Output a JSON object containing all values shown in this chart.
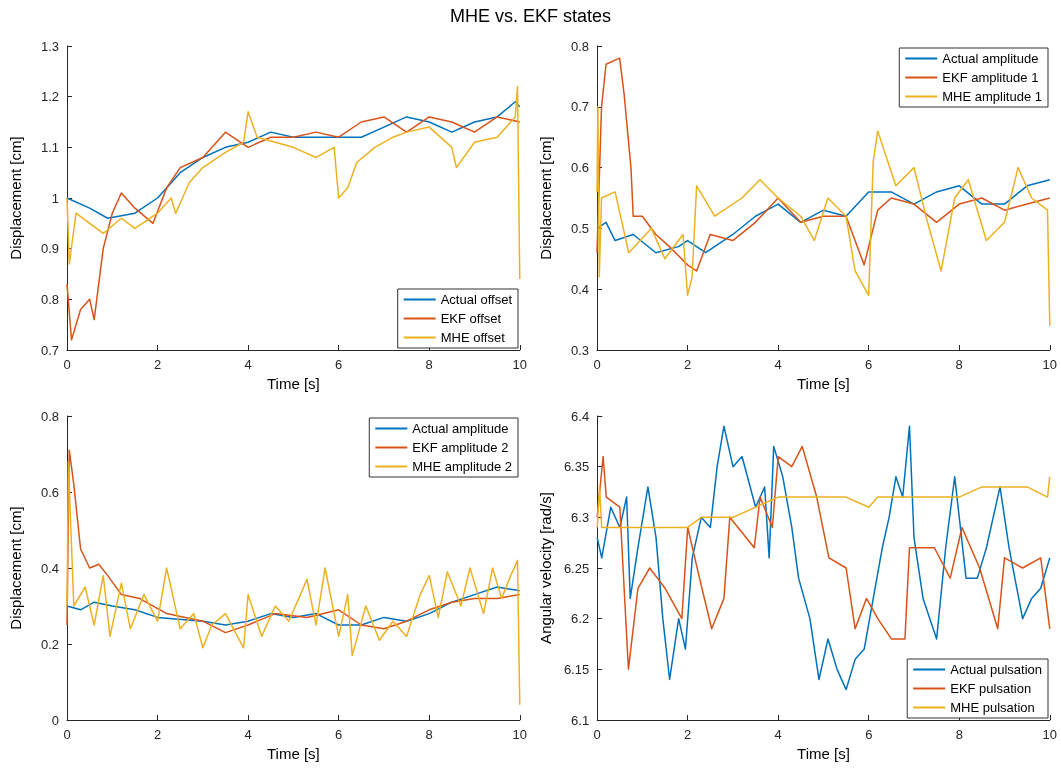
{
  "chart_data": [
    {
      "type": "line",
      "title": "MHE vs. EKF states",
      "xlabel": "Time [s]",
      "ylabel": "Displacement [cm]",
      "xlim": [
        0,
        10
      ],
      "xticks": [
        0,
        2,
        4,
        6,
        8,
        10
      ],
      "ylim": [
        0.7,
        1.3
      ],
      "yticks": [
        0.7,
        0.8,
        0.9,
        1,
        1.1,
        1.2,
        1.3
      ],
      "grid": false,
      "legend": "bottom right",
      "marker": "none",
      "series": [
        {
          "name": "Actual offset",
          "color": "#0072bd",
          "x": [
            0,
            0.5,
            0.9,
            1.5,
            2,
            2.5,
            3,
            3.5,
            4,
            4.5,
            5,
            5.5,
            6,
            6.5,
            7,
            7.5,
            8,
            8.5,
            9,
            9.5,
            9.9,
            10
          ],
          "values": [
            1.0,
            0.98,
            0.96,
            0.97,
            1.0,
            1.05,
            1.08,
            1.1,
            1.11,
            1.13,
            1.12,
            1.12,
            1.12,
            1.12,
            1.14,
            1.16,
            1.15,
            1.13,
            1.15,
            1.16,
            1.19,
            1.18
          ]
        },
        {
          "name": "EKF offset",
          "color": "#d95319",
          "x": [
            0,
            0.1,
            0.3,
            0.5,
            0.6,
            0.8,
            1,
            1.2,
            1.5,
            1.9,
            2.2,
            2.5,
            3,
            3.5,
            4,
            4.5,
            5,
            5.5,
            6,
            6.5,
            7,
            7.5,
            8,
            8.5,
            9,
            9.5,
            10
          ],
          "values": [
            0.83,
            0.72,
            0.78,
            0.8,
            0.76,
            0.9,
            0.97,
            1.01,
            0.98,
            0.95,
            1.02,
            1.06,
            1.08,
            1.13,
            1.1,
            1.12,
            1.12,
            1.13,
            1.12,
            1.15,
            1.16,
            1.13,
            1.16,
            1.15,
            1.13,
            1.16,
            1.15
          ]
        },
        {
          "name": "MHE offset",
          "color": "#edb120",
          "x": [
            0,
            0.05,
            0.2,
            0.5,
            0.8,
            1.2,
            1.5,
            2,
            2.3,
            2.4,
            2.7,
            3,
            3.5,
            3.9,
            4,
            4.2,
            5,
            5.5,
            5.9,
            6,
            6.2,
            6.4,
            6.8,
            7.2,
            7.5,
            8,
            8.5,
            8.6,
            9,
            9.5,
            9.9,
            9.95,
            10
          ],
          "values": [
            1.0,
            0.87,
            0.97,
            0.95,
            0.93,
            0.96,
            0.94,
            0.97,
            1.0,
            0.97,
            1.03,
            1.06,
            1.09,
            1.11,
            1.17,
            1.12,
            1.1,
            1.08,
            1.1,
            1.0,
            1.02,
            1.07,
            1.1,
            1.12,
            1.13,
            1.14,
            1.1,
            1.06,
            1.11,
            1.12,
            1.16,
            1.22,
            0.84
          ]
        }
      ]
    },
    {
      "type": "line",
      "xlabel": "Time [s]",
      "ylabel": "Displacement [cm]",
      "xlim": [
        0,
        10
      ],
      "xticks": [
        0,
        2,
        4,
        6,
        8,
        10
      ],
      "ylim": [
        0.3,
        0.8
      ],
      "yticks": [
        0.3,
        0.4,
        0.5,
        0.6,
        0.7,
        0.8
      ],
      "grid": false,
      "legend": "top right",
      "marker": "none",
      "series": [
        {
          "name": "Actual amplitude",
          "color": "#0072bd",
          "x": [
            0,
            0.2,
            0.4,
            0.8,
            1.3,
            1.8,
            2,
            2.4,
            3,
            3.5,
            4,
            4.5,
            5,
            5.5,
            6,
            6.5,
            7,
            7.5,
            8,
            8.5,
            9,
            9.5,
            10
          ],
          "values": [
            0.5,
            0.51,
            0.48,
            0.49,
            0.46,
            0.47,
            0.48,
            0.46,
            0.49,
            0.52,
            0.54,
            0.51,
            0.53,
            0.52,
            0.56,
            0.56,
            0.54,
            0.56,
            0.57,
            0.54,
            0.54,
            0.57,
            0.58
          ]
        },
        {
          "name": "EKF amplitude 1",
          "color": "#d95319",
          "x": [
            0,
            0.1,
            0.2,
            0.5,
            0.6,
            0.75,
            0.8,
            1,
            1.3,
            1.6,
            2,
            2.2,
            2.5,
            3,
            3.5,
            4,
            4.5,
            5,
            5.5,
            5.9,
            6.2,
            6.5,
            7,
            7.5,
            8,
            8.5,
            9,
            9.5,
            10
          ],
          "values": [
            0.46,
            0.7,
            0.77,
            0.78,
            0.72,
            0.6,
            0.52,
            0.52,
            0.49,
            0.47,
            0.44,
            0.43,
            0.49,
            0.48,
            0.51,
            0.55,
            0.51,
            0.52,
            0.52,
            0.44,
            0.53,
            0.55,
            0.54,
            0.51,
            0.54,
            0.55,
            0.53,
            0.54,
            0.55
          ]
        },
        {
          "name": "MHE amplitude 1",
          "color": "#edb120",
          "x": [
            0,
            0.02,
            0.05,
            0.1,
            0.4,
            0.7,
            1.2,
            1.5,
            1.9,
            2,
            2.1,
            2.2,
            2.6,
            3.2,
            3.6,
            4,
            4.5,
            4.8,
            5.1,
            5.5,
            5.7,
            6,
            6.1,
            6.2,
            6.6,
            7,
            7.3,
            7.6,
            7.9,
            8.2,
            8.6,
            9,
            9.3,
            9.6,
            9.95,
            10
          ],
          "values": [
            0.56,
            0.7,
            0.42,
            0.55,
            0.56,
            0.46,
            0.5,
            0.45,
            0.49,
            0.39,
            0.42,
            0.57,
            0.52,
            0.55,
            0.58,
            0.55,
            0.52,
            0.48,
            0.55,
            0.52,
            0.43,
            0.39,
            0.61,
            0.66,
            0.57,
            0.6,
            0.51,
            0.43,
            0.55,
            0.58,
            0.48,
            0.51,
            0.6,
            0.55,
            0.53,
            0.34
          ]
        }
      ]
    },
    {
      "type": "line",
      "xlabel": "Time [s]",
      "ylabel": "Displacement [cm]",
      "xlim": [
        0,
        10
      ],
      "xticks": [
        0,
        2,
        4,
        6,
        8,
        10
      ],
      "ylim": [
        0,
        0.8
      ],
      "yticks": [
        0,
        0.2,
        0.4,
        0.6,
        0.8
      ],
      "grid": false,
      "legend": "top right",
      "marker": "none",
      "series": [
        {
          "name": "Actual amplitude",
          "color": "#0072bd",
          "x": [
            0,
            0.3,
            0.6,
            1,
            1.5,
            2,
            3,
            3.5,
            4,
            4.5,
            5,
            5.5,
            6,
            6.5,
            7,
            7.5,
            8,
            8.5,
            9,
            9.5,
            10
          ],
          "values": [
            0.3,
            0.29,
            0.31,
            0.3,
            0.29,
            0.27,
            0.26,
            0.25,
            0.26,
            0.28,
            0.27,
            0.28,
            0.25,
            0.25,
            0.27,
            0.26,
            0.28,
            0.31,
            0.33,
            0.35,
            0.34
          ]
        },
        {
          "name": "EKF amplitude 2",
          "color": "#d95319",
          "x": [
            0,
            0.05,
            0.15,
            0.3,
            0.5,
            0.7,
            0.9,
            1.2,
            1.6,
            2.2,
            3,
            3.5,
            4,
            4.6,
            5.3,
            6,
            6.5,
            7,
            7.5,
            8,
            8.5,
            9,
            9.5,
            10
          ],
          "values": [
            0.25,
            0.71,
            0.62,
            0.45,
            0.4,
            0.41,
            0.38,
            0.33,
            0.32,
            0.28,
            0.26,
            0.23,
            0.25,
            0.28,
            0.27,
            0.29,
            0.25,
            0.24,
            0.26,
            0.29,
            0.31,
            0.32,
            0.32,
            0.33
          ]
        },
        {
          "name": "MHE amplitude 2",
          "color": "#edb120",
          "x": [
            0,
            0.03,
            0.15,
            0.4,
            0.6,
            0.8,
            0.95,
            1.2,
            1.4,
            1.7,
            2,
            2.2,
            2.5,
            2.8,
            3,
            3.2,
            3.5,
            3.9,
            4,
            4.3,
            4.6,
            4.9,
            5.3,
            5.5,
            5.7,
            6,
            6.2,
            6.3,
            6.6,
            6.9,
            7.2,
            7.5,
            7.8,
            8,
            8.2,
            8.4,
            8.7,
            8.9,
            9.2,
            9.4,
            9.6,
            9.8,
            9.95,
            10
          ],
          "values": [
            0.3,
            0.68,
            0.3,
            0.35,
            0.25,
            0.38,
            0.22,
            0.36,
            0.24,
            0.33,
            0.26,
            0.4,
            0.24,
            0.28,
            0.19,
            0.25,
            0.28,
            0.19,
            0.33,
            0.22,
            0.3,
            0.26,
            0.37,
            0.25,
            0.4,
            0.22,
            0.33,
            0.17,
            0.3,
            0.21,
            0.26,
            0.22,
            0.33,
            0.38,
            0.27,
            0.39,
            0.3,
            0.4,
            0.28,
            0.4,
            0.32,
            0.38,
            0.42,
            0.04
          ]
        }
      ]
    },
    {
      "type": "line",
      "xlabel": "Time [s]",
      "ylabel": "Angular velocity [rad/s]",
      "xlim": [
        0,
        10
      ],
      "xticks": [
        0,
        2,
        4,
        6,
        8,
        10
      ],
      "ylim": [
        6.1,
        6.4
      ],
      "yticks": [
        6.1,
        6.15,
        6.2,
        6.25,
        6.3,
        6.35,
        6.4
      ],
      "grid": false,
      "legend": "bottom right",
      "marker": "none",
      "series": [
        {
          "name": "Actual pulsation",
          "color": "#0072bd",
          "x": [
            0,
            0.1,
            0.3,
            0.5,
            0.65,
            0.73,
            0.9,
            1.12,
            1.3,
            1.45,
            1.6,
            1.8,
            1.95,
            2.1,
            2.3,
            2.5,
            2.65,
            2.8,
            3,
            3.2,
            3.5,
            3.7,
            3.8,
            3.9,
            4.1,
            4.3,
            4.45,
            4.7,
            4.9,
            5.1,
            5.3,
            5.5,
            5.7,
            5.9,
            6.1,
            6.3,
            6.45,
            6.6,
            6.75,
            6.9,
            7,
            7.2,
            7.5,
            7.7,
            7.9,
            8.15,
            8.4,
            8.6,
            8.9,
            9.1,
            9.4,
            9.6,
            9.8,
            10
          ],
          "values": [
            6.28,
            6.26,
            6.31,
            6.29,
            6.32,
            6.22,
            6.27,
            6.33,
            6.28,
            6.2,
            6.14,
            6.2,
            6.17,
            6.26,
            6.3,
            6.29,
            6.35,
            6.39,
            6.35,
            6.36,
            6.31,
            6.33,
            6.26,
            6.37,
            6.34,
            6.29,
            6.24,
            6.2,
            6.14,
            6.18,
            6.15,
            6.13,
            6.16,
            6.17,
            6.22,
            6.27,
            6.3,
            6.34,
            6.32,
            6.39,
            6.28,
            6.22,
            6.18,
            6.27,
            6.34,
            6.24,
            6.24,
            6.27,
            6.33,
            6.27,
            6.2,
            6.22,
            6.23,
            6.26
          ]
        },
        {
          "name": "EKF pulsation",
          "color": "#d95319",
          "x": [
            0,
            0.13,
            0.2,
            0.5,
            0.69,
            0.9,
            1.16,
            1.5,
            1.87,
            2,
            2.26,
            2.53,
            2.8,
            2.93,
            3.47,
            3.6,
            3.87,
            4,
            4.3,
            4.53,
            4.85,
            5.12,
            5.5,
            5.7,
            5.95,
            6.2,
            6.5,
            6.8,
            6.9,
            7.45,
            7.8,
            8.06,
            8.45,
            8.85,
            9,
            9.4,
            9.8,
            10
          ],
          "values": [
            6.3,
            6.36,
            6.32,
            6.31,
            6.15,
            6.23,
            6.25,
            6.23,
            6.2,
            6.29,
            6.24,
            6.19,
            6.22,
            6.3,
            6.27,
            6.32,
            6.29,
            6.36,
            6.35,
            6.37,
            6.32,
            6.26,
            6.25,
            6.19,
            6.22,
            6.2,
            6.18,
            6.18,
            6.27,
            6.27,
            6.24,
            6.29,
            6.25,
            6.19,
            6.26,
            6.25,
            6.26,
            6.19
          ]
        },
        {
          "name": "MHE pulsation",
          "color": "#edb120",
          "x": [
            0,
            0.05,
            0.1,
            0.5,
            1,
            1.7,
            2,
            2.3,
            3,
            3.5,
            4,
            4.5,
            5,
            5.5,
            6,
            6.2,
            6.5,
            7,
            7.5,
            8,
            8.5,
            9,
            9.5,
            9.95,
            10
          ],
          "values": [
            6.29,
            6.33,
            6.29,
            6.29,
            6.29,
            6.29,
            6.29,
            6.3,
            6.3,
            6.31,
            6.32,
            6.32,
            6.32,
            6.32,
            6.31,
            6.32,
            6.32,
            6.32,
            6.32,
            6.32,
            6.33,
            6.33,
            6.33,
            6.32,
            6.34
          ]
        }
      ]
    }
  ]
}
